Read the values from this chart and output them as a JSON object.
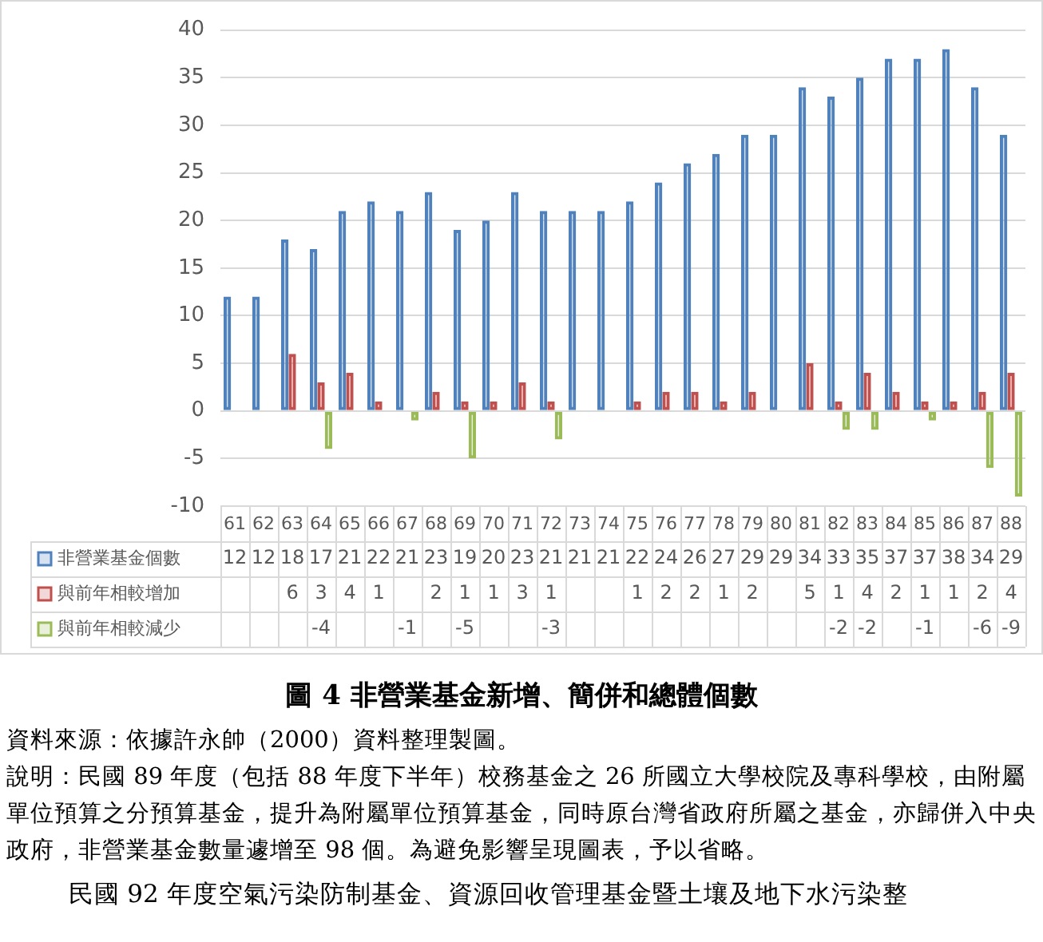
{
  "chart_data": {
    "type": "bar",
    "title": "圖 4 非營業基金新增、簡併和總體個數",
    "categories": [
      "61",
      "62",
      "63",
      "64",
      "65",
      "66",
      "67",
      "68",
      "69",
      "70",
      "71",
      "72",
      "73",
      "74",
      "75",
      "76",
      "77",
      "78",
      "79",
      "80",
      "81",
      "82",
      "83",
      "84",
      "85",
      "86",
      "87",
      "88"
    ],
    "series": [
      {
        "name": "非營業基金個數",
        "color": "#4f81bd",
        "values": [
          12,
          12,
          18,
          17,
          21,
          22,
          21,
          23,
          19,
          20,
          23,
          21,
          21,
          21,
          22,
          24,
          26,
          27,
          29,
          29,
          34,
          33,
          35,
          37,
          37,
          38,
          34,
          29
        ]
      },
      {
        "name": "與前年相較增加",
        "color": "#c0504d",
        "values": [
          null,
          null,
          6,
          3,
          4,
          1,
          null,
          2,
          1,
          1,
          3,
          1,
          null,
          null,
          1,
          2,
          2,
          1,
          2,
          null,
          5,
          1,
          4,
          2,
          1,
          1,
          2,
          4
        ]
      },
      {
        "name": "與前年相較減少",
        "color": "#9bbb59",
        "values": [
          null,
          null,
          null,
          -4,
          null,
          null,
          -1,
          null,
          -5,
          null,
          null,
          -3,
          null,
          null,
          null,
          null,
          null,
          null,
          null,
          null,
          null,
          -2,
          -2,
          null,
          -1,
          null,
          -6,
          -9
        ]
      }
    ],
    "ylim": [
      -10,
      40
    ],
    "yticks": [
      -10,
      -5,
      0,
      5,
      10,
      15,
      20,
      25,
      30,
      35,
      40
    ],
    "grid": "y",
    "legend": "bottom",
    "data_labels": true,
    "annotations": [
      "資料來源：依據許永帥（2000）資料整理製圖。",
      "說明：民國 89 年度（包括 88 年度下半年）校務基金之 26 所國立大學校院及專科學校，由附屬單位預算之分預算基金，提升為附屬單位預算基金，同時原台灣省政府所屬之基金，亦歸併入中央政府，非營業基金數量遽增至 98 個。為避免影響呈現圖表，予以省略。",
      "民國 92 年度空氣污染防制基金、資源回收管理基金暨土壤及地下水污染整"
    ]
  }
}
